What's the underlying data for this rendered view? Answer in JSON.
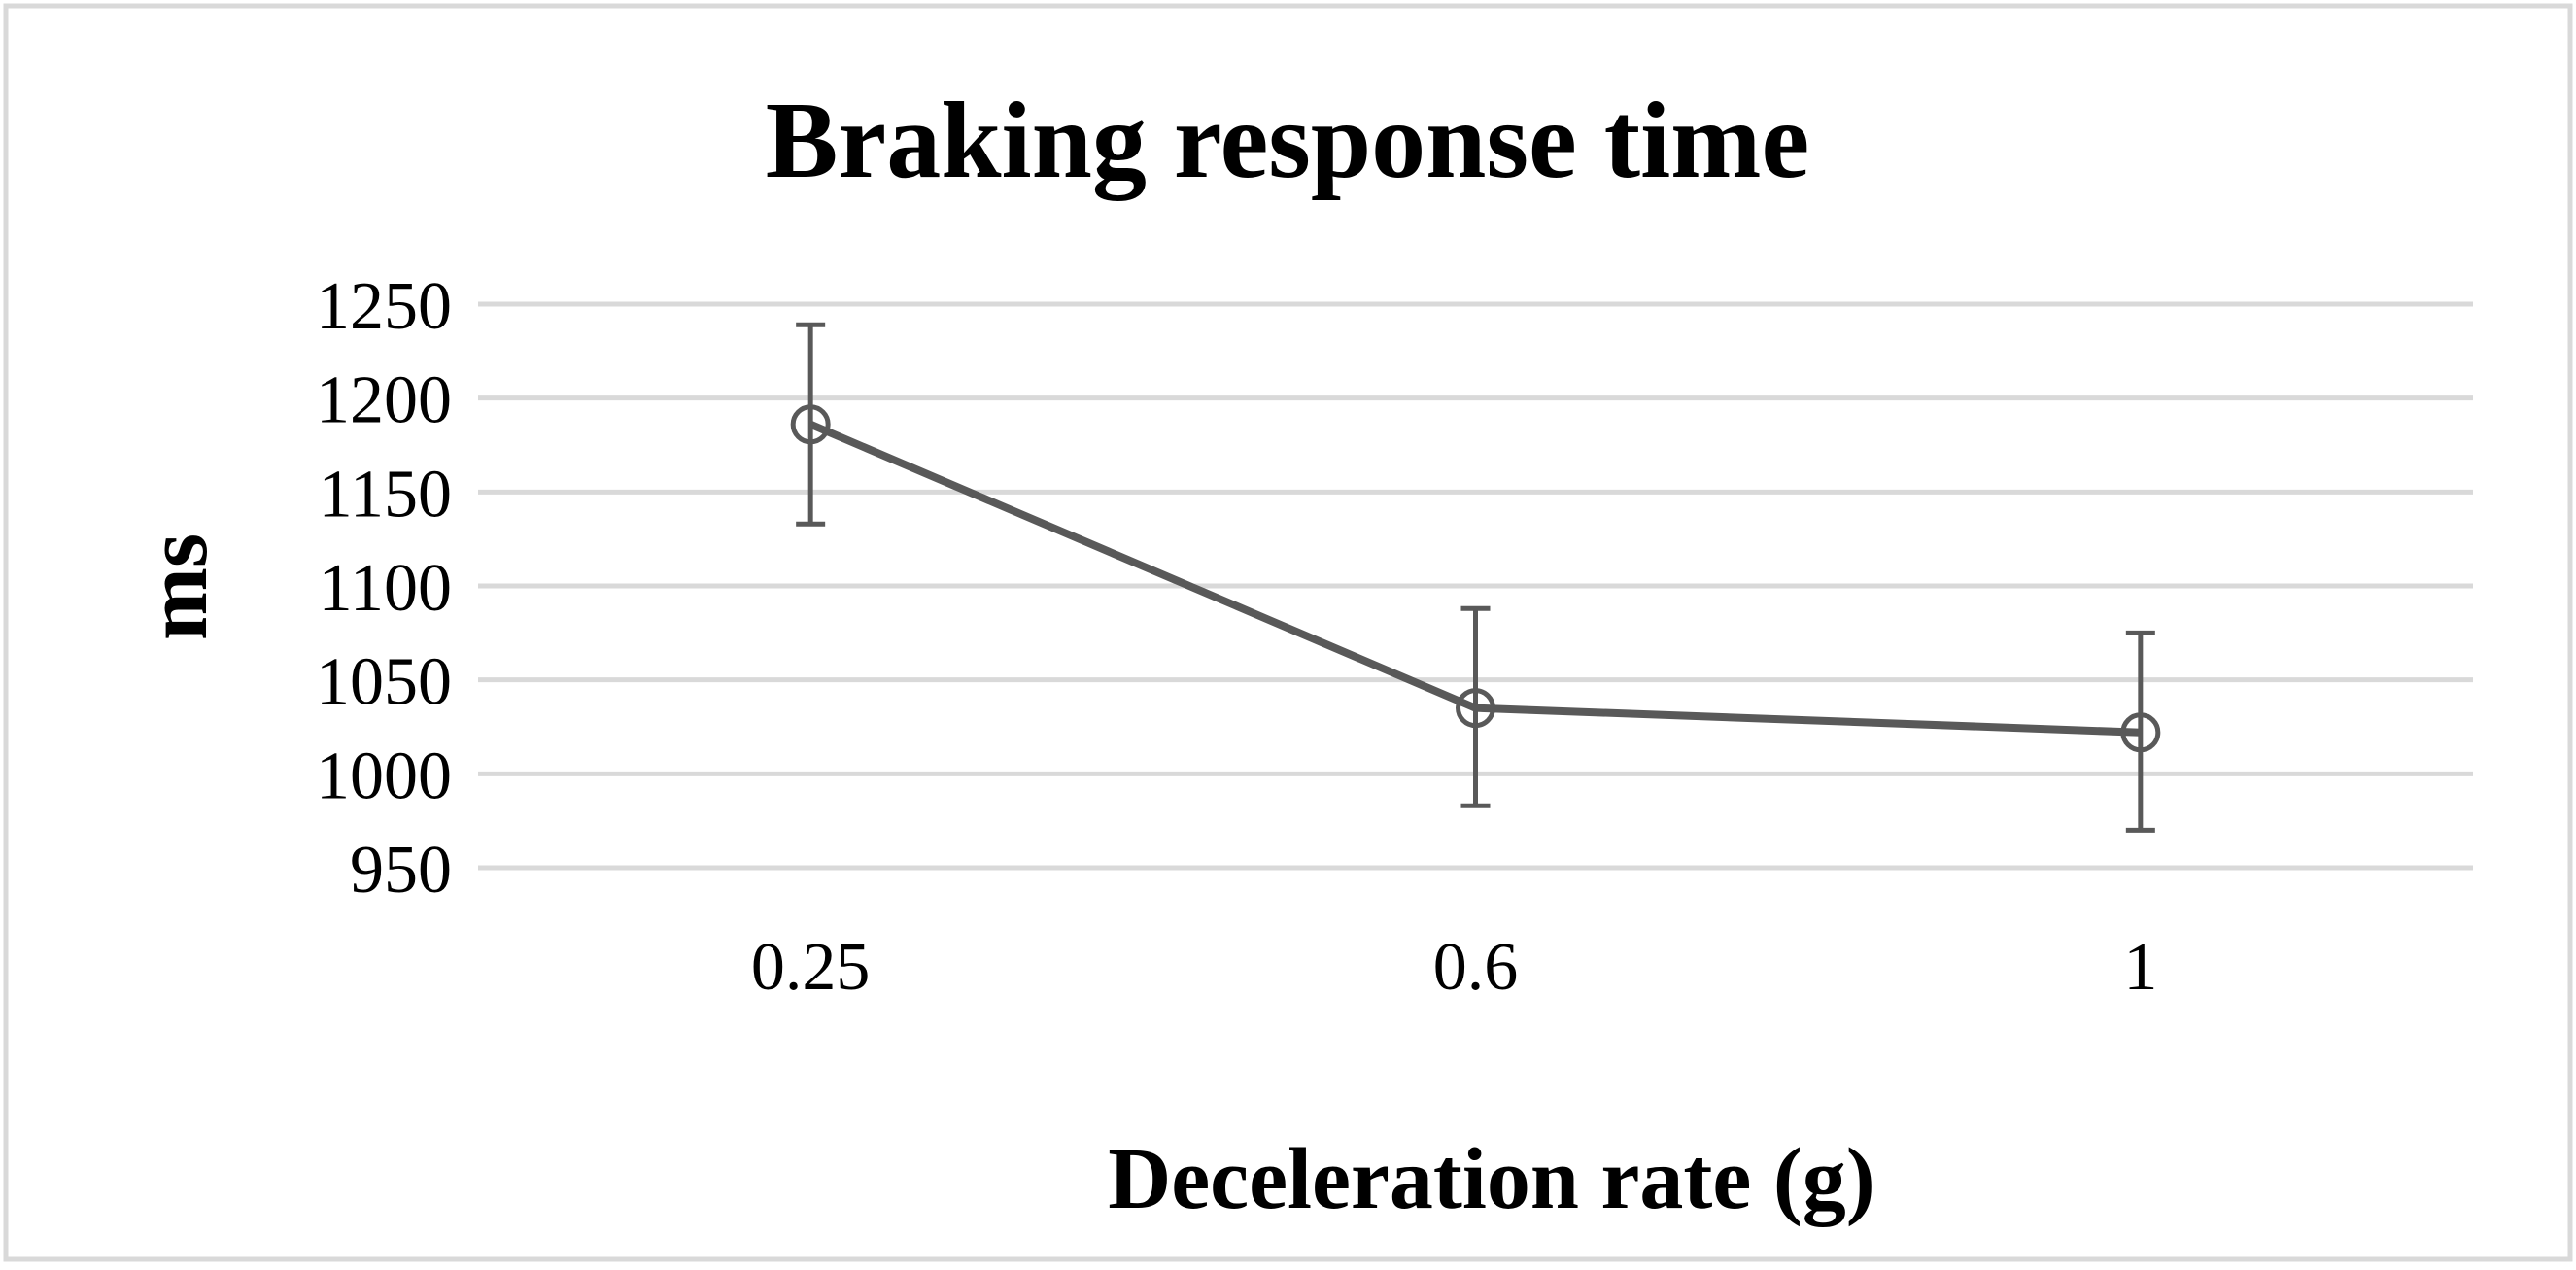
{
  "chart_data": {
    "type": "line",
    "title": "Braking response time",
    "xlabel": "Deceleration rate (g)",
    "ylabel": "ms",
    "categories": [
      "0.25",
      "0.6",
      "1"
    ],
    "series": [
      {
        "name": "Braking response time",
        "values": [
          1186,
          1035,
          1022
        ],
        "error_low": [
          1133,
          983,
          970
        ],
        "error_high": [
          1239,
          1088,
          1075
        ]
      }
    ],
    "ylim": [
      950,
      1250
    ],
    "yticks": [
      "950",
      "1000",
      "1050",
      "1100",
      "1150",
      "1200",
      "1250"
    ],
    "grid": true,
    "marker": "open-circle",
    "colors": {
      "line": "#595959",
      "grid": "#d9d9d9",
      "border": "#d9d9d9"
    }
  }
}
